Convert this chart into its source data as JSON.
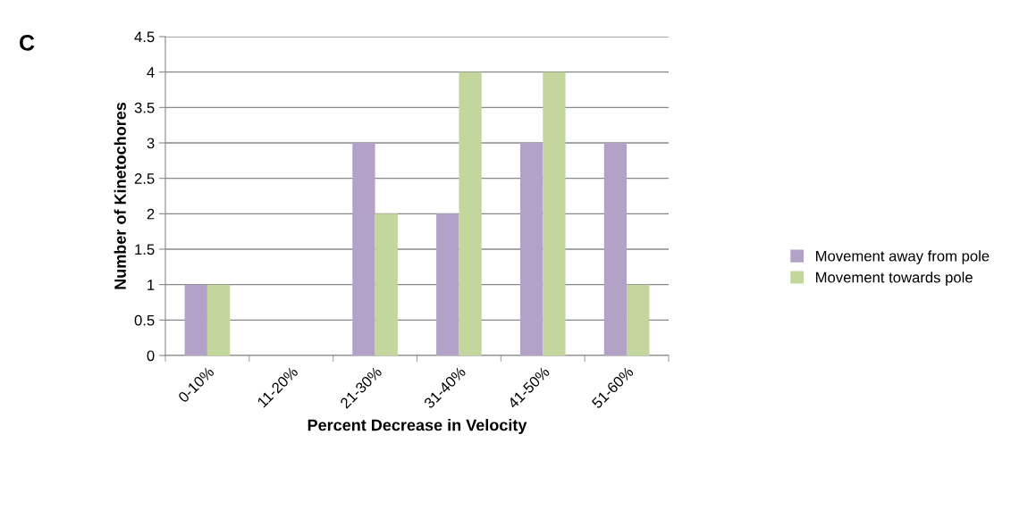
{
  "chart_data": {
    "type": "bar",
    "xlabel": "Percent Decrease in Velocity",
    "ylabel": "Number of Kinetochores",
    "categories": [
      "0-10%",
      "11-20%",
      "21-30%",
      "31-40%",
      "41-50%",
      "51-60%"
    ],
    "series": [
      {
        "name": "Movement away from pole",
        "color": "#b3a2c7",
        "values": [
          1,
          0,
          3,
          2,
          3,
          3
        ]
      },
      {
        "name": "Movement towards pole",
        "color": "#c3d69b",
        "values": [
          1,
          0,
          2,
          4,
          4,
          1
        ]
      }
    ],
    "ylim": [
      0,
      4.5
    ],
    "yticks": [
      0,
      0.5,
      1,
      1.5,
      2,
      2.5,
      3,
      3.5,
      4,
      4.5
    ],
    "grid": "y",
    "legend": "right",
    "annotations": [
      "C"
    ]
  }
}
